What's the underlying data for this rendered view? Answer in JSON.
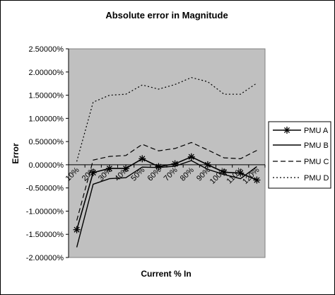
{
  "chart_data": {
    "type": "line",
    "title": "Absolute error in Magnitude",
    "xlabel": "Current % In",
    "ylabel": "Error",
    "ylim": [
      -2.0,
      2.5
    ],
    "y_ticks": [
      "2.50000%",
      "2.00000%",
      "1.50000%",
      "1.00000%",
      "0.50000%",
      "0.00000%",
      "-0.50000%",
      "-1.00000%",
      "-1.50000%",
      "-2.00000%"
    ],
    "categories": [
      "10%",
      "20%",
      "30%",
      "40%",
      "50%",
      "60%",
      "70%",
      "80%",
      "90%",
      "100%",
      "110%",
      "120%"
    ],
    "legend_position": "right",
    "plot_background": "#c0c0c0",
    "series": [
      {
        "name": "PMU A",
        "style": "solid-star",
        "values": [
          -1.4,
          -0.17,
          -0.08,
          -0.08,
          0.13,
          -0.04,
          0.02,
          0.17,
          0.0,
          -0.16,
          -0.18,
          -0.33
        ]
      },
      {
        "name": "PMU B",
        "style": "solid",
        "values": [
          -1.78,
          -0.42,
          -0.3,
          -0.28,
          -0.05,
          -0.06,
          -0.03,
          0.09,
          -0.1,
          -0.21,
          -0.3,
          -0.04
        ]
      },
      {
        "name": "PMU C",
        "style": "dashed",
        "values": [
          -1.2,
          0.1,
          0.18,
          0.2,
          0.44,
          0.3,
          0.35,
          0.48,
          0.32,
          0.15,
          0.13,
          0.31
        ]
      },
      {
        "name": "PMU D",
        "style": "dotted",
        "values": [
          0.07,
          1.35,
          1.5,
          1.52,
          1.72,
          1.63,
          1.73,
          1.88,
          1.79,
          1.52,
          1.52,
          1.76
        ]
      }
    ]
  }
}
